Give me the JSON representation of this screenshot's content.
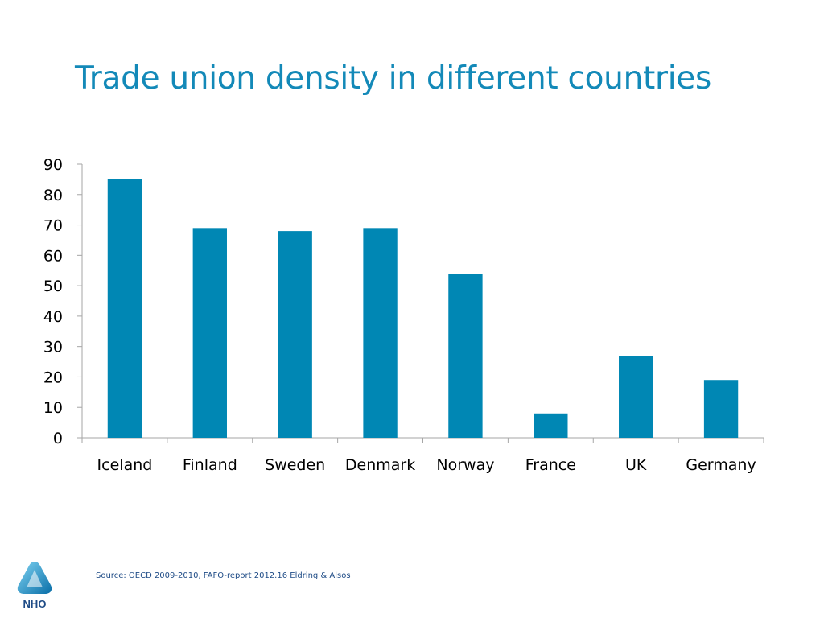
{
  "slide": {
    "title": "Trade union density in different countries",
    "source": "Source: OECD 2009-2010, FAFO-report 2012.16 Eldring & Alsos",
    "logo_text": "NHO"
  },
  "colors": {
    "title": "#1389b8",
    "bar": "#0087b4",
    "axis": "#a6a6a6",
    "logo": "#1e4b86"
  },
  "chart_data": {
    "type": "bar",
    "categories": [
      "Iceland",
      "Finland",
      "Sweden",
      "Denmark",
      "Norway",
      "France",
      "UK",
      "Germany"
    ],
    "values": [
      85,
      69,
      68,
      69,
      54,
      8,
      27,
      19
    ],
    "ylim": [
      0,
      90
    ],
    "yticks": [
      0,
      10,
      20,
      30,
      40,
      50,
      60,
      70,
      80,
      90
    ],
    "grid": false,
    "legend": "none"
  }
}
